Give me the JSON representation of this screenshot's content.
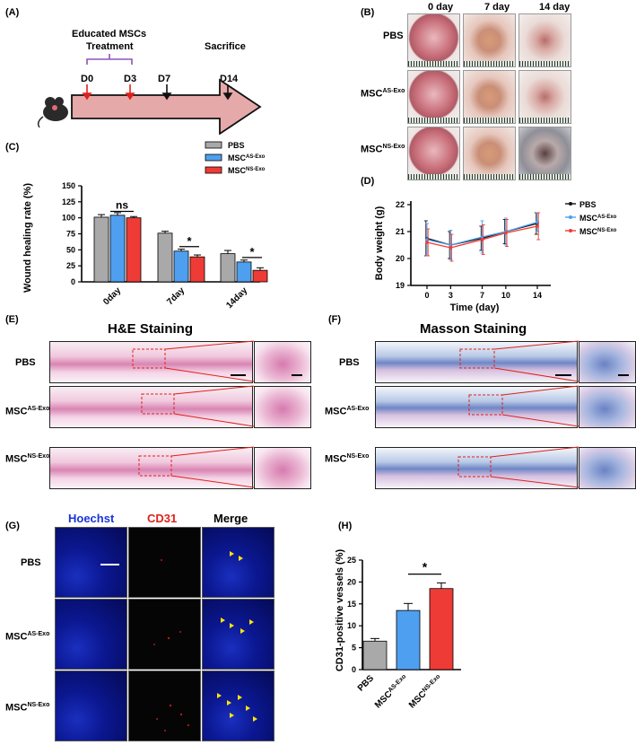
{
  "panel_labels": {
    "A": "(A)",
    "B": "(B)",
    "C": "(C)",
    "D": "(D)",
    "E": "(E)",
    "F": "(F)",
    "G": "(G)",
    "H": "(H)"
  },
  "groups": {
    "pbs": "PBS",
    "as_base": "MSC",
    "as_sup": "AS-Exo",
    "ns_base": "MSC",
    "ns_sup": "NS-Exo"
  },
  "panel_a": {
    "educated": "Educated MSCs",
    "treatment": "Treatment",
    "sacrifice": "Sacrifice",
    "days": [
      "D0",
      "D3",
      "D7",
      "D14"
    ]
  },
  "panel_b": {
    "columns": [
      "0 day",
      "7 day",
      "14 day"
    ]
  },
  "panel_e": {
    "title": "H&E Staining"
  },
  "panel_f": {
    "title": "Masson Staining"
  },
  "panel_g": {
    "columns": [
      "Hoechst",
      "CD31",
      "Merge"
    ]
  },
  "colors": {
    "pbs": "#a9a9a9",
    "as": "#4f9ff0",
    "ns": "#ef3b36",
    "purple": "#8e53b8",
    "arrow_fill": "#e6a9a9",
    "red_arrow": "#e0211b"
  },
  "chart_data": [
    {
      "id": "C",
      "type": "bar",
      "ylabel": "Wound healing rate (%)",
      "ylim": [
        0,
        150
      ],
      "yticks": [
        0,
        25,
        50,
        75,
        100,
        125,
        150
      ],
      "categories": [
        "0day",
        "7day",
        "14day"
      ],
      "series": [
        {
          "name": "PBS",
          "values": [
            101,
            76,
            44
          ],
          "errors": [
            4,
            3,
            5
          ]
        },
        {
          "name": "MSC AS-Exo",
          "values": [
            104,
            48,
            31
          ],
          "errors": [
            4,
            3,
            3
          ]
        },
        {
          "name": "MSC NS-Exo",
          "values": [
            100,
            39,
            18
          ],
          "errors": [
            2,
            3,
            4
          ]
        }
      ],
      "annotations": [
        "ns",
        "*",
        "*"
      ]
    },
    {
      "id": "D",
      "type": "line",
      "xlabel": "Time (day)",
      "ylabel": "Body weight (g)",
      "x": [
        0,
        3,
        7,
        10,
        14
      ],
      "xlim": [
        0,
        14
      ],
      "ylim": [
        19,
        22
      ],
      "yticks": [
        19,
        20,
        21,
        22
      ],
      "series": [
        {
          "name": "PBS",
          "values": [
            20.75,
            20.5,
            20.75,
            21.0,
            21.3
          ],
          "errors": [
            0.65,
            0.5,
            0.45,
            0.45,
            0.4
          ]
        },
        {
          "name": "MSC AS-Exo",
          "values": [
            20.7,
            20.5,
            20.8,
            21.0,
            21.35
          ],
          "errors": [
            0.6,
            0.55,
            0.6,
            0.5,
            0.35
          ]
        },
        {
          "name": "MSC NS-Exo",
          "values": [
            20.6,
            20.4,
            20.7,
            20.95,
            21.2
          ],
          "errors": [
            0.5,
            0.5,
            0.55,
            0.5,
            0.5
          ]
        }
      ]
    },
    {
      "id": "H",
      "type": "bar",
      "ylabel": "CD31-positive vessels (%)",
      "ylim": [
        0,
        25
      ],
      "yticks": [
        0,
        5,
        10,
        15,
        20,
        25
      ],
      "categories": [
        "PBS",
        "MSC AS-Exo",
        "MSC NS-Exo"
      ],
      "values": [
        6.5,
        13.5,
        18.5
      ],
      "errors": [
        0.6,
        1.6,
        1.3
      ],
      "annotations": [
        "*"
      ]
    }
  ]
}
